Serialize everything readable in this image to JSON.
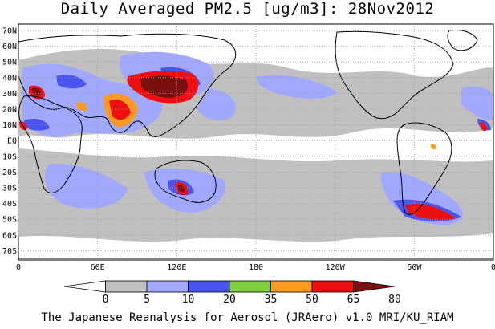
{
  "title": "Daily Averaged PM2.5 [ug/m3]: 28Nov2012",
  "credit": "The Japanese Reanalysis for Aerosol (JRAero) v1.0 MRI/KU_RIAM",
  "lat_labels": [
    "70N",
    "60N",
    "50N",
    "40N",
    "30N",
    "20N",
    "10N",
    "EQ",
    "10S",
    "20S",
    "30S",
    "40S",
    "50S",
    "60S",
    "70S"
  ],
  "lon_labels": [
    "0",
    "60E",
    "120E",
    "180",
    "120W",
    "60W",
    "0"
  ],
  "colorbar": {
    "levels": [
      "0",
      "5",
      "10",
      "20",
      "35",
      "50",
      "65",
      "80"
    ],
    "colors": [
      "#ffffff",
      "#c0c0c0",
      "#a0a8ff",
      "#4a55f0",
      "#7fd040",
      "#ff9a20",
      "#ee1010",
      "#7a1010"
    ]
  },
  "palette": {
    "land_outline": "#000000",
    "grid": "#9a9a9a",
    "ocean": "#ffffff"
  }
}
